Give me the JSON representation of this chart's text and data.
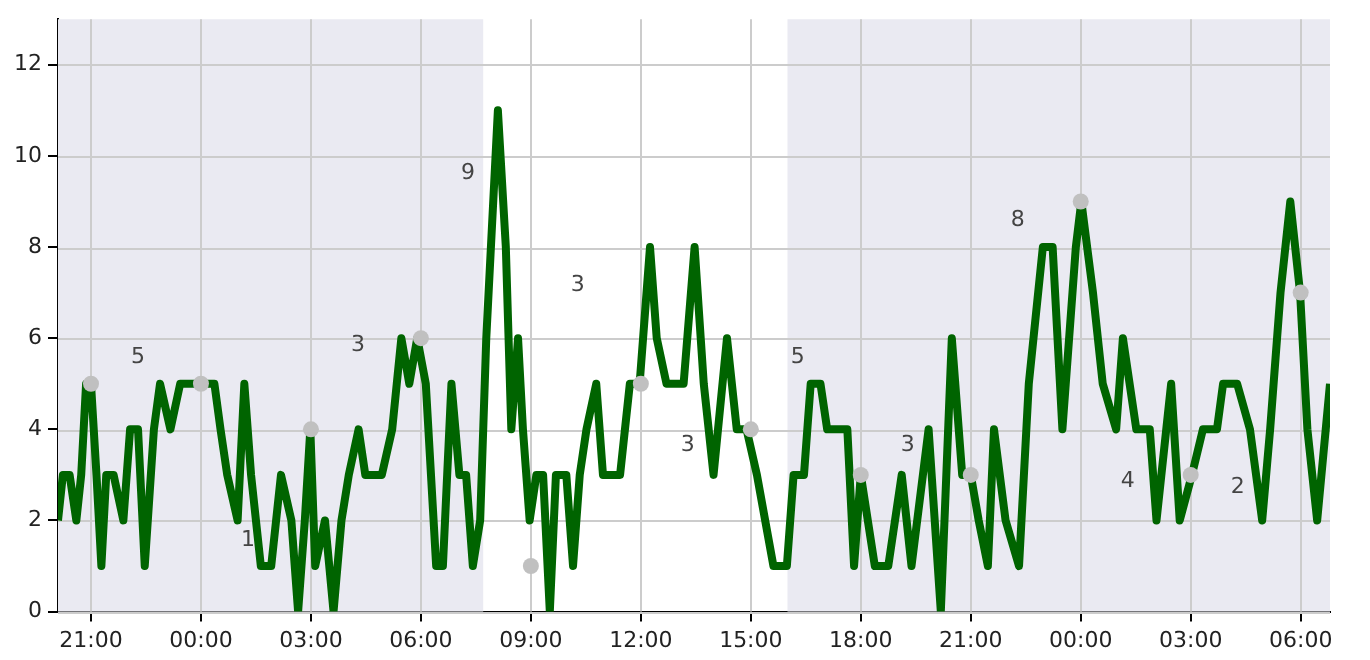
{
  "chart_data": {
    "type": "line",
    "xlim": [
      "--01-01T20:06",
      "--01-03T06:48"
    ],
    "ylim": [
      0,
      13
    ],
    "xticks": [
      {
        "value": "--01-01T21:00",
        "label": "21:00"
      },
      {
        "value": "--01-02T00:00",
        "label": "00:00"
      },
      {
        "value": "--01-02T03:00",
        "label": "03:00"
      },
      {
        "value": "--01-02T06:00",
        "label": "06:00"
      },
      {
        "value": "--01-02T09:00",
        "label": "09:00"
      },
      {
        "value": "--01-02T12:00",
        "label": "12:00"
      },
      {
        "value": "--01-02T15:00",
        "label": "15:00"
      },
      {
        "value": "--01-02T18:00",
        "label": "18:00"
      },
      {
        "value": "--01-02T21:00",
        "label": "21:00"
      },
      {
        "value": "--01-03T00:00",
        "label": "00:00"
      },
      {
        "value": "--01-03T03:00",
        "label": "03:00"
      },
      {
        "value": "--01-03T06:00",
        "label": "06:00"
      }
    ],
    "yticks": [
      0,
      2,
      4,
      6,
      8,
      10,
      12
    ],
    "grid": true,
    "legend": false,
    "bands": [
      {
        "axis": "x",
        "from": "--01-01T20:06",
        "to": "--01-02T07:42",
        "color": "#eaeaf2"
      },
      {
        "axis": "x",
        "from": "--01-02T16:00",
        "to": "--01-03T06:48",
        "color": "#eaeaf2"
      }
    ],
    "series": [
      {
        "color": "#006400",
        "marker": "none",
        "x": [
          "--01-01T20:06",
          "--01-01T20:14",
          "--01-01T20:25",
          "--01-01T20:36",
          "--01-01T20:44",
          "--01-01T20:52",
          "--01-01T21:00",
          "--01-01T21:09",
          "--01-01T21:17",
          "--01-01T21:25",
          "--01-01T21:37",
          "--01-01T21:53",
          "--01-01T22:04",
          "--01-01T22:17",
          "--01-01T22:28",
          "--01-01T22:43",
          "--01-01T22:53",
          "--01-01T23:10",
          "--01-01T23:26",
          "--01-01T23:54",
          "--01-02T00:22",
          "--01-02T00:32",
          "--01-02T00:43",
          "--01-02T01:00",
          "--01-02T01:11",
          "--01-02T01:22",
          "--01-02T01:38",
          "--01-02T01:55",
          "--01-02T02:11",
          "--01-02T02:28",
          "--01-02T02:39",
          "--01-02T02:50",
          "--01-02T02:59",
          "--01-02T03:07",
          "--01-02T03:23",
          "--01-02T03:37",
          "--01-02T03:50",
          "--01-02T04:02",
          "--01-02T04:18",
          "--01-02T04:29",
          "--01-02T04:56",
          "--01-02T05:13",
          "--01-02T05:28",
          "--01-02T05:41",
          "--01-02T05:54",
          "--01-02T06:08",
          "--01-02T06:25",
          "--01-02T06:36",
          "--01-02T06:50",
          "--01-02T07:03",
          "--01-02T07:14",
          "--01-02T07:25",
          "--01-02T07:37",
          "--01-02T07:47",
          "--01-02T08:06",
          "--01-02T08:19",
          "--01-02T08:28",
          "--01-02T08:39",
          "--01-02T08:47",
          "--01-02T08:58",
          "--01-02T09:09",
          "--01-02T09:20",
          "--01-02T09:31",
          "--01-02T09:41",
          "--01-02T09:58",
          "--01-02T10:09",
          "--01-02T10:20",
          "--01-02T10:31",
          "--01-02T10:47",
          "--01-02T10:58",
          "--01-02T11:26",
          "--01-02T11:42",
          "--01-02T11:58",
          "--01-02T12:15",
          "--01-02T12:26",
          "--01-02T12:42",
          "--01-02T13:10",
          "--01-02T13:28",
          "--01-02T13:43",
          "--01-02T13:59",
          "--01-02T14:21",
          "--01-02T14:37",
          "--01-02T14:53",
          "--01-02T15:10",
          "--01-02T15:37",
          "--01-02T15:59",
          "--01-02T16:10",
          "--01-02T16:27",
          "--01-02T16:38",
          "--01-02T16:54",
          "--01-02T17:05",
          "--01-02T17:38",
          "--01-02T17:49",
          "--01-02T18:00",
          "--01-02T18:23",
          "--01-02T18:45",
          "--01-02T19:07",
          "--01-02T19:23",
          "--01-02T19:51",
          "--01-02T20:11",
          "--01-02T20:29",
          "--01-02T20:46",
          "--01-02T21:00",
          "--01-02T21:13",
          "--01-02T21:28",
          "--01-02T21:38",
          "--01-02T21:57",
          "--01-02T22:19",
          "--01-02T22:35",
          "--01-02T22:58",
          "--01-02T23:14",
          "--01-02T23:30",
          "--01-02T23:52",
          "--01-03T00:01",
          "--01-03T00:20",
          "--01-03T00:36",
          "--01-03T00:58",
          "--01-03T01:09",
          "--01-03T01:31",
          "--01-03T01:53",
          "--01-03T02:04",
          "--01-03T02:28",
          "--01-03T02:42",
          "--01-03T03:02",
          "--01-03T03:20",
          "--01-03T03:43",
          "--01-03T03:53",
          "--01-03T04:16",
          "--01-03T04:37",
          "--01-03T04:57",
          "--01-03T05:10",
          "--01-03T05:27",
          "--01-03T05:43",
          "--01-03T05:59",
          "--01-03T06:11",
          "--01-03T06:27",
          "--01-03T06:48"
        ],
        "values": [
          2,
          3,
          3,
          2,
          3,
          5,
          5,
          3,
          1,
          3,
          3,
          2,
          4,
          4,
          1,
          4,
          5,
          4,
          5,
          5,
          5,
          4,
          3,
          2,
          5,
          3,
          1,
          1,
          3,
          2,
          0,
          2,
          4,
          1,
          2,
          0,
          2,
          3,
          4,
          3,
          3,
          4,
          6,
          5,
          6,
          5,
          1,
          1,
          5,
          3,
          3,
          1,
          2,
          6,
          11,
          8,
          4,
          6,
          4,
          2,
          3,
          3,
          0,
          3,
          3,
          1,
          3,
          4,
          5,
          3,
          3,
          5,
          5,
          8,
          6,
          5,
          5,
          8,
          5,
          3,
          6,
          4,
          4,
          3,
          1,
          1,
          3,
          3,
          5,
          5,
          4,
          4,
          1,
          3,
          1,
          1,
          3,
          1,
          4,
          0,
          6,
          3,
          3,
          2,
          1,
          4,
          2,
          1,
          5,
          8,
          8,
          4,
          8,
          9,
          7,
          5,
          4,
          6,
          4,
          4,
          2,
          5,
          2,
          3,
          4,
          4,
          5,
          5,
          4,
          2,
          4,
          7,
          9,
          7,
          4,
          2,
          5
        ]
      },
      {
        "type": "scatter",
        "color": "#c0c0c0",
        "marker": "circle",
        "x": [
          "--01-01T21:00",
          "--01-02T00:00",
          "--01-02T03:00",
          "--01-02T06:00",
          "--01-02T09:00",
          "--01-02T12:00",
          "--01-02T15:00",
          "--01-02T18:00",
          "--01-02T21:00",
          "--01-03T00:00",
          "--01-03T03:00",
          "--01-03T06:00"
        ],
        "values": [
          5,
          5,
          4,
          6,
          1,
          5,
          4,
          3,
          3,
          9,
          3,
          7
        ]
      }
    ],
    "annotations": [
      "5",
      "1",
      "3",
      "9",
      "3",
      "3",
      "5",
      "3",
      "8",
      "4",
      "2"
    ]
  }
}
